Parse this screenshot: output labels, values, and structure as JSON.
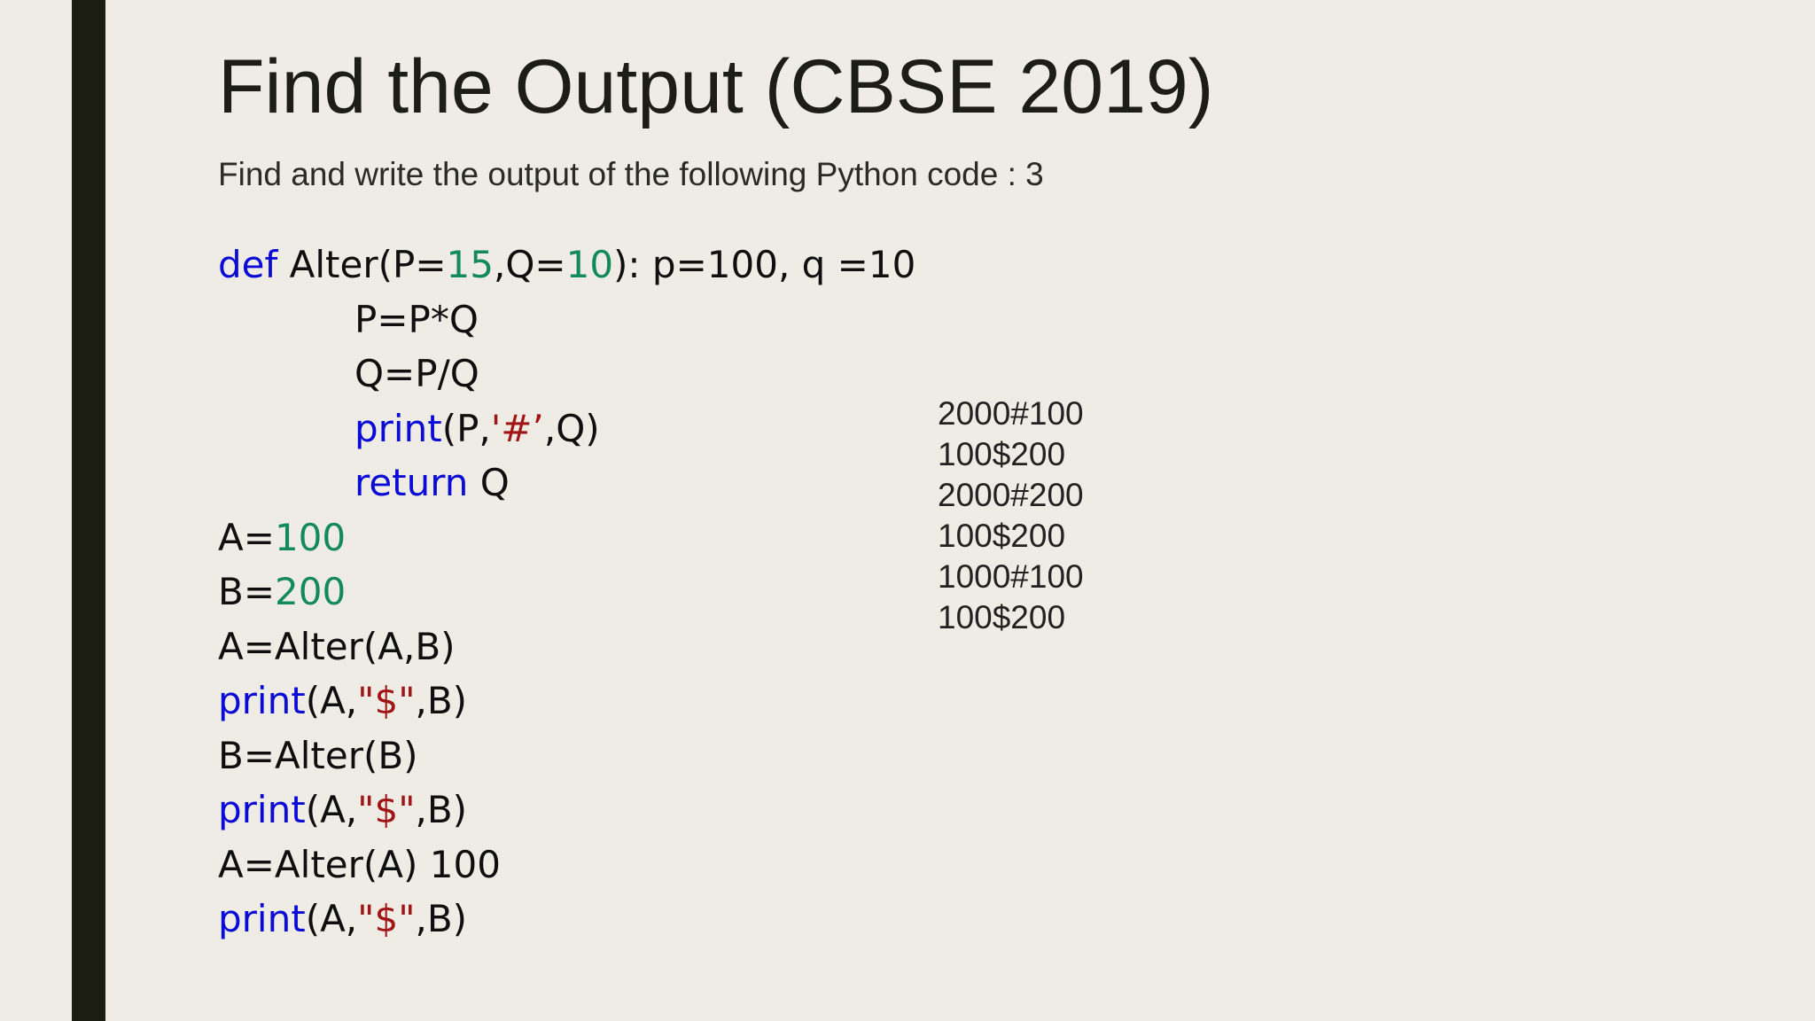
{
  "slide": {
    "title": "Find the Output (CBSE 2019)",
    "subtitle": "Find and write the output of the following Python code : 3",
    "code": {
      "line1": {
        "kw": "def",
        "name": " Alter(P=",
        "n1": "15",
        "sep": ",Q=",
        "n2": "10",
        "rest": "): p=100, q =10"
      },
      "line2": {
        "text": "P=P*Q"
      },
      "line3": {
        "text": "Q=P/Q"
      },
      "line4": {
        "kw": "print",
        "pre": "(P,",
        "str": "'#’",
        "post": ",Q)"
      },
      "line5": {
        "kw": "return",
        "rest": " Q"
      },
      "line6": {
        "pre": "A=",
        "num": "100"
      },
      "line7": {
        "pre": "B=",
        "num": "200"
      },
      "line8": {
        "text": "A=Alter(A,B)"
      },
      "line9": {
        "kw": "print",
        "pre": "(A,",
        "str": "\"$\"",
        "post": ",B)"
      },
      "line10": {
        "text": "B=Alter(B)"
      },
      "line11": {
        "kw": "print",
        "pre": "(A,",
        "str": "\"$\"",
        "post": ",B)"
      },
      "line12": {
        "text": "A=Alter(A) 100"
      },
      "line13": {
        "kw": "print",
        "pre": "(A,",
        "str": "\"$\"",
        "post": ",B)"
      }
    },
    "output": [
      "2000#100",
      "100$200",
      "2000#200",
      "100$200",
      "1000#100",
      "100$200"
    ],
    "colors": {
      "background": "#efece6",
      "accent_bar": "#1b1d12",
      "keyword": "#0b0bd6",
      "number": "#128a5a",
      "string": "#a01616"
    }
  }
}
